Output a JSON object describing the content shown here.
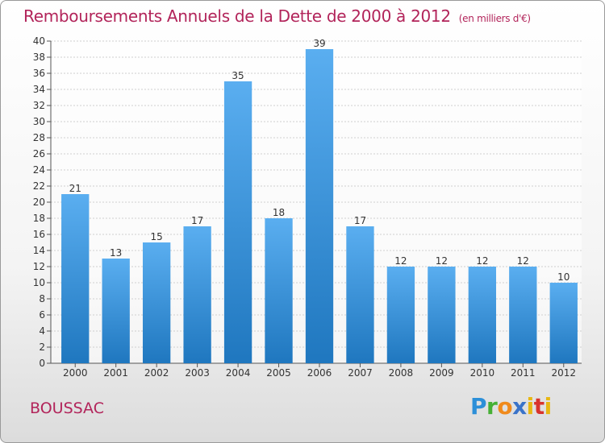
{
  "title": "Remboursements Annuels de la Dette de 2000 à 2012",
  "unit_note": "(en milliers d'€)",
  "location": "BOUSSAC",
  "logo_text": "Proxiti",
  "colors": {
    "title": "#b2245a",
    "bar_top": "#5aaef0",
    "bar_bottom": "#1f77bf",
    "grid": "#cfcfcf"
  },
  "chart_data": {
    "type": "bar",
    "title": "Remboursements Annuels de la Dette de 2000 à 2012",
    "xlabel": "",
    "ylabel": "",
    "categories": [
      "2000",
      "2001",
      "2002",
      "2003",
      "2004",
      "2005",
      "2006",
      "2007",
      "2008",
      "2009",
      "2010",
      "2011",
      "2012"
    ],
    "values": [
      21,
      13,
      15,
      17,
      35,
      18,
      39,
      17,
      12,
      12,
      12,
      12,
      10
    ],
    "ylim": [
      0,
      40
    ],
    "yticks": [
      0,
      2,
      4,
      6,
      8,
      10,
      12,
      14,
      16,
      18,
      20,
      22,
      24,
      26,
      28,
      30,
      32,
      34,
      36,
      38,
      40
    ],
    "grid": "horizontal",
    "legend": "none"
  }
}
